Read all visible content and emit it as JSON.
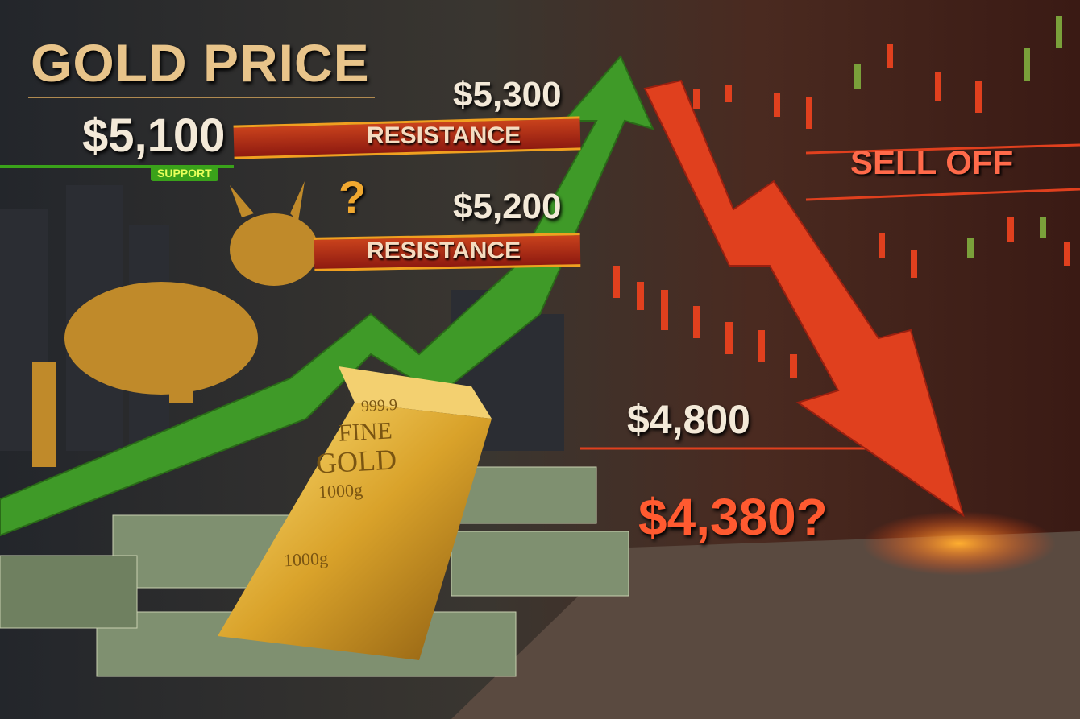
{
  "title": "GOLD PRICE",
  "levels": {
    "support_price": "$5,100",
    "support_label": "SUPPORT",
    "resistance_1_price": "$5,300",
    "resistance_1_label": "RESISTANCE",
    "resistance_2_price": "$5,200",
    "resistance_2_label": "RESISTANCE",
    "question_mark": "?",
    "lower_price": "$4,800",
    "target_price": "$4,380?"
  },
  "sell_off_label": "SELL OFF",
  "gold_bar": {
    "purity": "999.9",
    "line1": "FINE",
    "line2": "GOLD",
    "weight_top": "1000g",
    "weight_front": "1000g"
  },
  "colors": {
    "gold": "#e8c48a",
    "up_arrow": "#3f9a28",
    "down_arrow": "#e0401e",
    "resistance_band": "#b0301a",
    "support": "#3aa21a"
  }
}
